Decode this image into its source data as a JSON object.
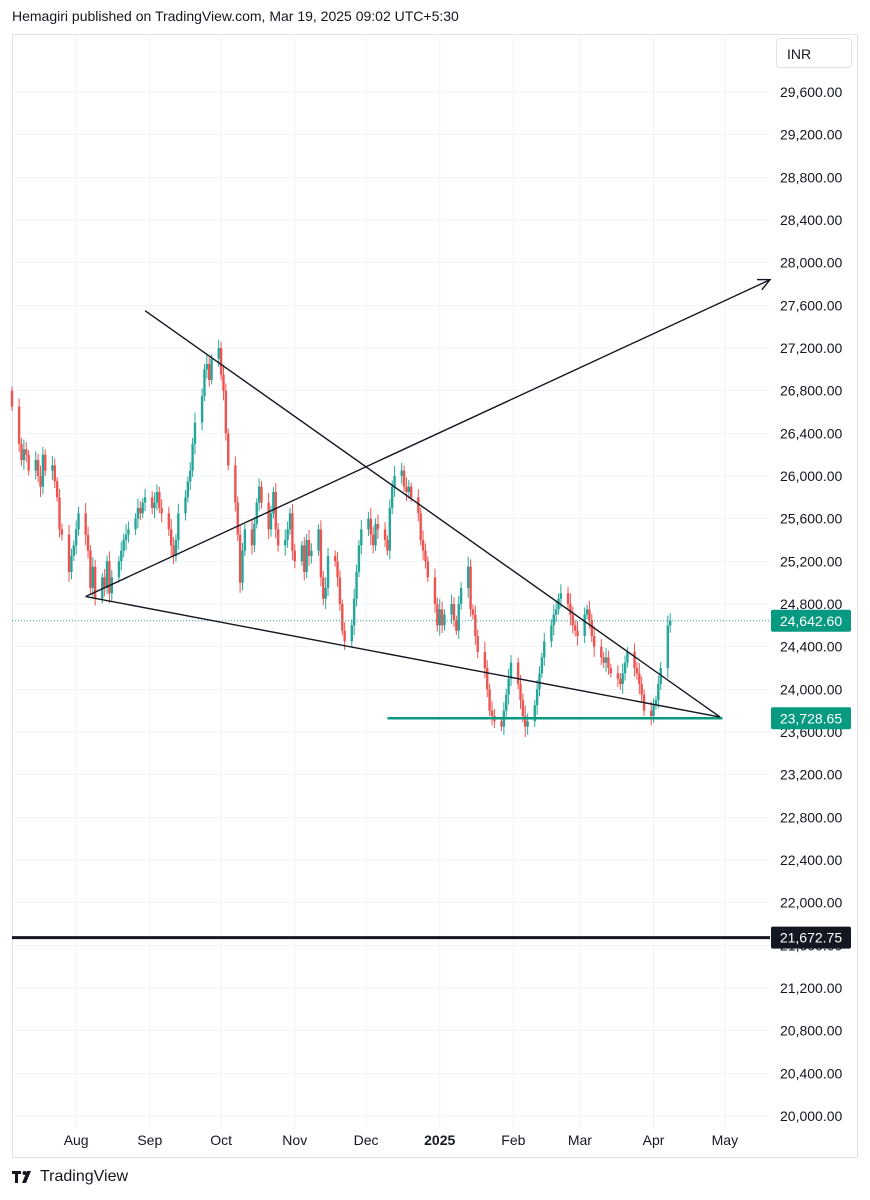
{
  "header": {
    "text": "Hemagiri published on TradingView.com, Mar 19, 2025 09:02 UTC+5:30"
  },
  "currency": "INR",
  "footer": {
    "brand": "TradingView"
  },
  "colors": {
    "up": "#26a69a",
    "down": "#ef5350",
    "line": "#131722",
    "support": "#089981",
    "price_tag": "#089981",
    "dark_tag": "#131722"
  },
  "chart_data": {
    "type": "candlestick",
    "y_axis": {
      "range": [
        19900,
        29800
      ],
      "ticks": [
        "20,000.00",
        "20,400.00",
        "20,800.00",
        "21,200.00",
        "21,600.00",
        "22,000.00",
        "22,400.00",
        "22,800.00",
        "23,200.00",
        "23,600.00",
        "24,000.00",
        "24,400.00",
        "24,800.00",
        "25,200.00",
        "25,600.00",
        "26,000.00",
        "26,400.00",
        "26,800.00",
        "27,200.00",
        "27,600.00",
        "28,000.00",
        "28,400.00",
        "28,800.00",
        "29,200.00",
        "29,600.00"
      ]
    },
    "x_axis": {
      "range": [
        "2024-07-05",
        "2025-05-20"
      ],
      "ticks": [
        {
          "label": "Aug",
          "date": "2024-08-01"
        },
        {
          "label": "Sep",
          "date": "2024-09-01"
        },
        {
          "label": "Oct",
          "date": "2024-10-01"
        },
        {
          "label": "Nov",
          "date": "2024-11-01"
        },
        {
          "label": "Dec",
          "date": "2024-12-01"
        },
        {
          "label": "2025",
          "date": "2025-01-01",
          "bold": true
        },
        {
          "label": "Feb",
          "date": "2025-02-01"
        },
        {
          "label": "Mar",
          "date": "2025-03-01"
        },
        {
          "label": "Apr",
          "date": "2025-04-01"
        },
        {
          "label": "May",
          "date": "2025-05-01"
        }
      ]
    },
    "last_price": {
      "value": 24642.6,
      "label": "24,642.60"
    },
    "horizontal_levels": [
      {
        "value": 23728.65,
        "label": "23,728.65",
        "from": "2024-12-10",
        "to": "2025-04-30",
        "style": "support"
      },
      {
        "value": 21672.75,
        "label": "21,672.75",
        "from": "2024-07-05",
        "to": "2025-05-20",
        "style": "dark"
      }
    ],
    "trendlines": [
      {
        "from": [
          "2024-08-05",
          24870
        ],
        "to": [
          "2025-04-29",
          23740
        ],
        "arrow": false
      },
      {
        "from": [
          "2024-08-05",
          24870
        ],
        "to": [
          "2025-05-20",
          27840
        ],
        "arrow": true
      },
      {
        "from": [
          "2024-08-30",
          27550
        ],
        "to": [
          "2025-04-29",
          23740
        ],
        "arrow": false
      }
    ],
    "candles_close": [
      26650,
      26300,
      26150,
      26250,
      26200,
      26050,
      26150,
      26000,
      25900,
      26200,
      26050,
      26100,
      25950,
      25800,
      25500,
      25450,
      25100,
      25250,
      25350,
      25500,
      25650,
      25450,
      25300,
      24950,
      25150,
      24850,
      25050,
      24950,
      25200,
      24900,
      25050,
      25200,
      25300,
      25400,
      25450,
      25500,
      25600,
      25700,
      25650,
      25750,
      25800,
      25700,
      25750,
      25850,
      25700,
      25650,
      25500,
      25350,
      25250,
      25400,
      25650,
      25800,
      25950,
      26050,
      26300,
      26500,
      26750,
      27000,
      27050,
      26900,
      27100,
      27200,
      26950,
      26800,
      26400,
      26100,
      25750,
      25450,
      25000,
      25300,
      25500,
      25350,
      25550,
      25750,
      25900,
      25750,
      25500,
      25650,
      25850,
      25500,
      25350,
      25400,
      25500,
      25650,
      25300,
      25200,
      25350,
      25100,
      25400,
      25250,
      25300,
      25500,
      25050,
      24850,
      24950,
      25250,
      25200,
      25050,
      24800,
      24550,
      24450,
      24600,
      24850,
      25100,
      25350,
      25500,
      25600,
      25450,
      25350,
      25550,
      25500,
      25400,
      25300,
      25700,
      25900,
      26000,
      26050,
      25900,
      25850,
      25900,
      25800,
      25650,
      25400,
      25300,
      25200,
      25050,
      24800,
      24600,
      24750,
      24600,
      24700,
      24800,
      24650,
      24550,
      24800,
      24950,
      25150,
      24750,
      24700,
      24500,
      24350,
      24200,
      24000,
      23800,
      23750,
      23700,
      23650,
      23800,
      23950,
      24100,
      24250,
      24050,
      23900,
      23750,
      23650,
      23700,
      23850,
      24000,
      24150,
      24300,
      24450,
      24600,
      24700,
      24750,
      24850,
      24900,
      24800,
      24700,
      24600,
      24550,
      24500,
      24700,
      24750,
      24650,
      24500,
      24400,
      24300,
      24250,
      24300,
      24200,
      24150,
      24100,
      24050,
      24150,
      24250,
      24350,
      24200,
      24150,
      24050,
      23950,
      23800,
      23750,
      23850,
      23900,
      24050,
      24200,
      24600,
      24645
    ]
  }
}
